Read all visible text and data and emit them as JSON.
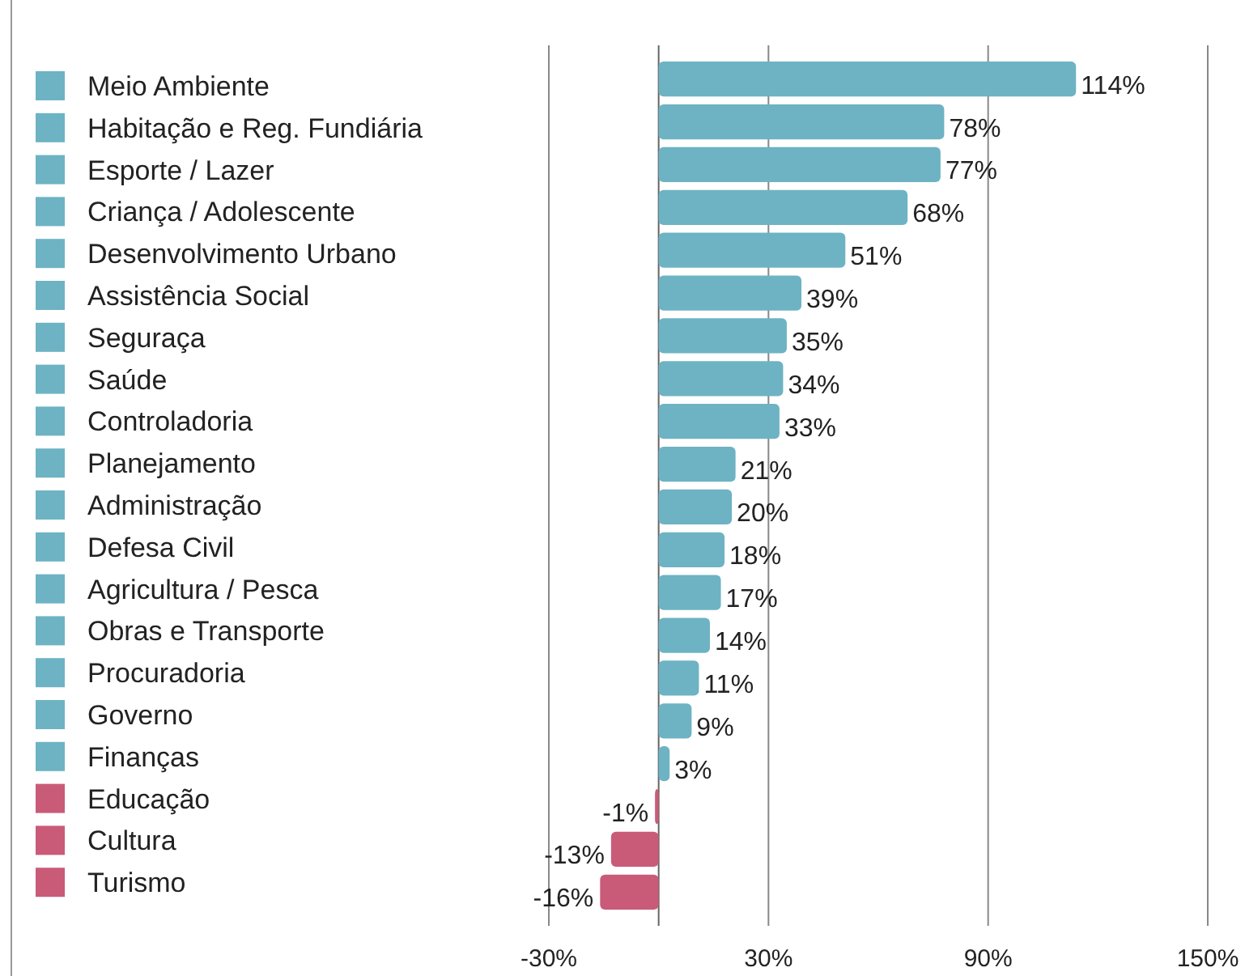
{
  "chart_data": {
    "type": "bar",
    "orientation": "horizontal",
    "categories": [
      "Meio Ambiente",
      "Habitação e Reg. Fundiária",
      "Esporte / Lazer",
      "Criança / Adolescente",
      "Desenvolvimento Urbano",
      "Assistência Social",
      "Seguraça",
      "Saúde",
      "Controladoria",
      "Planejamento",
      "Administração",
      "Defesa Civil",
      "Agricultura / Pesca",
      "Obras e Transporte",
      "Procuradoria",
      "Governo",
      "Finanças",
      "Educação",
      "Cultura",
      "Turismo"
    ],
    "values": [
      114,
      78,
      77,
      68,
      51,
      39,
      35,
      34,
      33,
      21,
      20,
      18,
      17,
      14,
      11,
      9,
      3,
      -1,
      -13,
      -16
    ],
    "value_labels": [
      "114%",
      "78%",
      "77%",
      "68%",
      "51%",
      "39%",
      "35%",
      "34%",
      "33%",
      "21%",
      "20%",
      "18%",
      "17%",
      "14%",
      "11%",
      "9%",
      "3%",
      "-1%",
      "-13%",
      "-16%"
    ],
    "colors": [
      "#6db3c3",
      "#6db3c3",
      "#6db3c3",
      "#6db3c3",
      "#6db3c3",
      "#6db3c3",
      "#6db3c3",
      "#6db3c3",
      "#6db3c3",
      "#6db3c3",
      "#6db3c3",
      "#6db3c3",
      "#6db3c3",
      "#6db3c3",
      "#6db3c3",
      "#6db3c3",
      "#6db3c3",
      "#c95b79",
      "#c95b79",
      "#c95b79"
    ],
    "xlim": [
      -30,
      150
    ],
    "xticks": [
      {
        "value": -30,
        "label": "-30%"
      },
      {
        "value": 30,
        "label": "30%"
      },
      {
        "value": 90,
        "label": "90%"
      },
      {
        "value": 150,
        "label": "150%"
      }
    ],
    "grid": "x"
  }
}
